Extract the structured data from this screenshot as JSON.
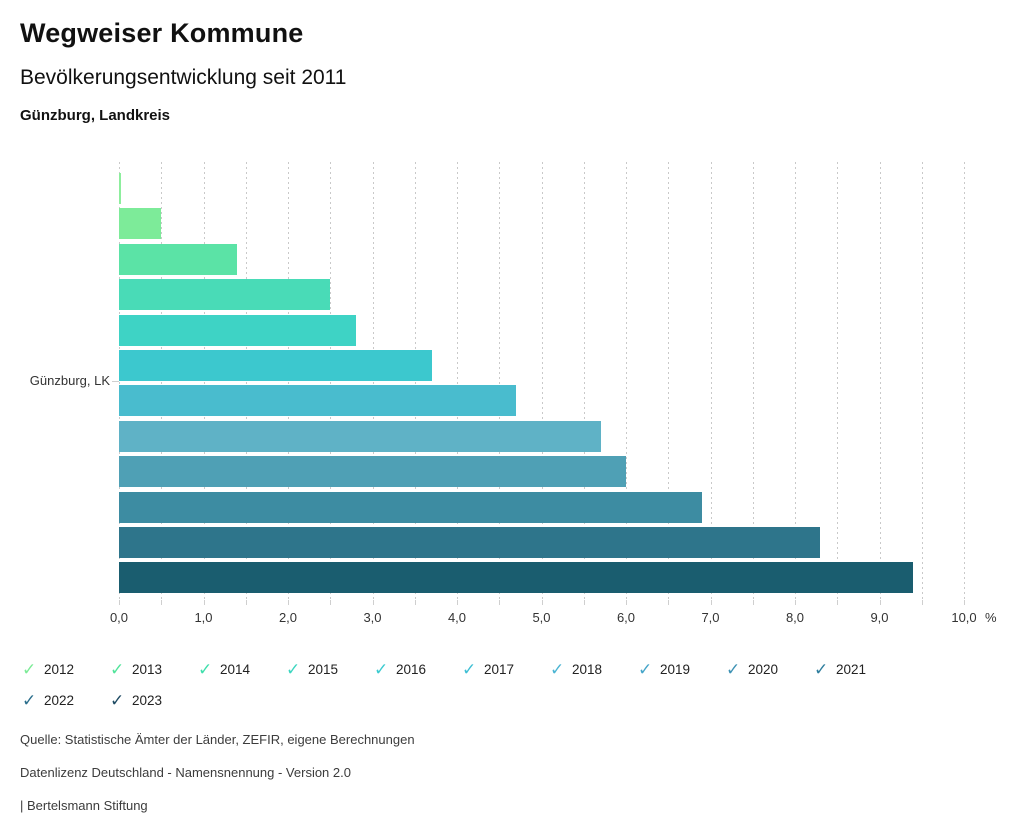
{
  "header": {
    "title": "Wegweiser Kommune",
    "subtitle": "Bevölkerungsentwicklung seit 2011",
    "region": "Günzburg, Landkreis"
  },
  "chart_data": {
    "type": "bar",
    "orientation": "horizontal",
    "title": "Bevölkerungsentwicklung seit 2011",
    "region_label": "Günzburg, LK",
    "unit": "%",
    "xlim": [
      0,
      10
    ],
    "x_major_step": 1.0,
    "x_minor_step": 0.5,
    "grid": "dashed-vertical-minor",
    "legend_position": "bottom",
    "x_tick_labels": [
      "0,0",
      "1,0",
      "2,0",
      "3,0",
      "4,0",
      "5,0",
      "6,0",
      "7,0",
      "8,0",
      "9,0",
      "10,0"
    ],
    "series": [
      {
        "year": "2012",
        "value": 0.0,
        "bar_color": "#8DEE9D",
        "check_color": "#7CEB97"
      },
      {
        "year": "2013",
        "value": 0.5,
        "bar_color": "#7DEB99",
        "check_color": "#52E49B"
      },
      {
        "year": "2014",
        "value": 1.4,
        "bar_color": "#5BE3A6",
        "check_color": "#3FDFAC"
      },
      {
        "year": "2015",
        "value": 2.5,
        "bar_color": "#49DBB7",
        "check_color": "#3DD6C0"
      },
      {
        "year": "2016",
        "value": 2.8,
        "bar_color": "#3ED3C5",
        "check_color": "#3CCBD0"
      },
      {
        "year": "2017",
        "value": 3.7,
        "bar_color": "#3CC8CE",
        "check_color": "#3FBFD4"
      },
      {
        "year": "2018",
        "value": 4.7,
        "bar_color": "#49BCCE",
        "check_color": "#4BB5D3"
      },
      {
        "year": "2019",
        "value": 5.7,
        "bar_color": "#5FB2C6",
        "check_color": "#45A5C9"
      },
      {
        "year": "2020",
        "value": 6.0,
        "bar_color": "#4FA0B5",
        "check_color": "#3E92B4"
      },
      {
        "year": "2021",
        "value": 6.9,
        "bar_color": "#3D8CA2",
        "check_color": "#2F7E9E"
      },
      {
        "year": "2022",
        "value": 8.3,
        "bar_color": "#2E758B",
        "check_color": "#2B6E8C"
      },
      {
        "year": "2023",
        "value": 9.4,
        "bar_color": "#1A5D6F",
        "check_color": "#1F4B63"
      }
    ]
  },
  "legend": {
    "check_icon": "✓"
  },
  "footer": {
    "source": "Quelle: Statistische Ämter der Länder, ZEFIR, eigene Berechnungen",
    "license": "Datenlizenz Deutschland - Namensnennung - Version 2.0",
    "attribution": "| Bertelsmann Stiftung"
  }
}
